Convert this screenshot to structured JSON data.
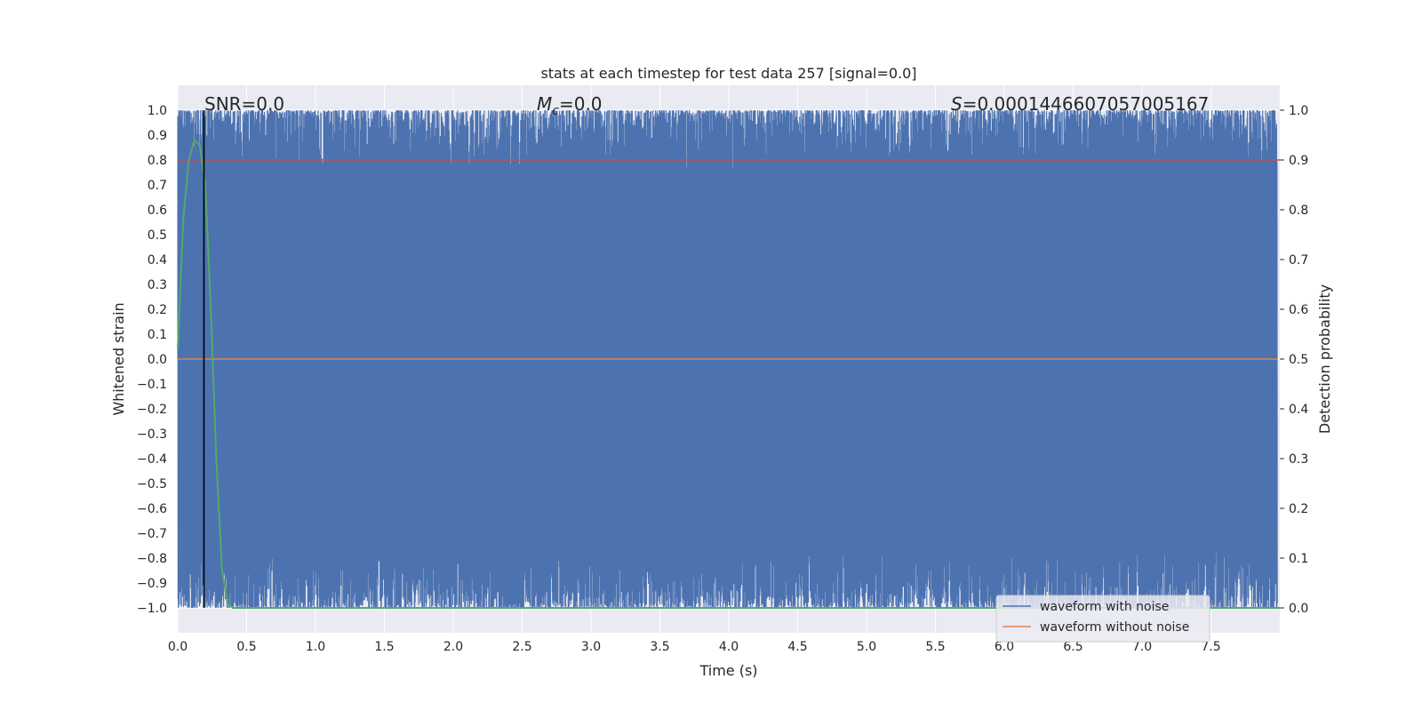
{
  "chart_data": {
    "type": "line",
    "title": "stats at each timestep for test data 257 [signal=0.0]",
    "xlabel": "Time (s)",
    "ylabel_left": "Whitened strain",
    "ylabel_right": "Detection probability",
    "xlim": [
      0.0,
      8.0
    ],
    "ylim_left": [
      -1.1,
      1.1
    ],
    "ylim_right": [
      -0.05,
      1.05
    ],
    "x_ticks": [
      "0.0",
      "0.5",
      "1.0",
      "1.5",
      "2.0",
      "2.5",
      "3.0",
      "3.5",
      "4.0",
      "4.5",
      "5.0",
      "5.5",
      "6.0",
      "6.5",
      "7.0",
      "7.5"
    ],
    "y_ticks_left": [
      "1.0",
      "0.9",
      "0.8",
      "0.7",
      "0.6",
      "0.5",
      "0.4",
      "0.3",
      "0.2",
      "0.1",
      "0.0",
      "−0.1",
      "−0.2",
      "−0.3",
      "−0.4",
      "−0.5",
      "−0.6",
      "−0.7",
      "−0.8",
      "−0.9",
      "−1.0"
    ],
    "y_ticks_right": [
      "1.0",
      "0.9",
      "0.8",
      "0.7",
      "0.6",
      "0.5",
      "0.4",
      "0.3",
      "0.2",
      "0.1",
      "0.0"
    ],
    "grid": true,
    "annotations": {
      "snr": "SNR=0.0",
      "mc_symbol": "M",
      "mc_sub": "c",
      "mc_value": "=0.0",
      "s_symbol": "S",
      "s_value": "=0.0001446607057005167"
    },
    "legend": {
      "placement": "lower-right",
      "entries": [
        "waveform with noise",
        "waveform without noise"
      ]
    },
    "series": [
      {
        "name": "waveform with noise",
        "axis": "left",
        "color": "#4c72b0",
        "style": "noise",
        "range": [
          -1.0,
          1.0
        ]
      },
      {
        "name": "waveform without noise",
        "axis": "left",
        "color": "#dd8452",
        "values": [
          0.0
        ]
      },
      {
        "axis": "right",
        "color": "#55a868",
        "x": [
          0.0,
          0.04,
          0.08,
          0.12,
          0.16,
          0.2,
          0.24,
          0.28,
          0.32,
          0.36,
          0.4,
          8.0
        ],
        "values": [
          0.52,
          0.78,
          0.9,
          0.94,
          0.93,
          0.85,
          0.6,
          0.3,
          0.08,
          0.01,
          0.0,
          0.0
        ]
      },
      {
        "axis": "right",
        "color": "#c44e52",
        "values": [
          0.9
        ]
      }
    ],
    "vline_x": 0.19
  },
  "colors": {
    "plot_bg": "#eaeaf2",
    "grid": "#ffffff",
    "noise": "#4c72b0",
    "clean": "#dd8452",
    "prob": "#55a868",
    "threshold": "#c44e52",
    "vline": "#000000"
  }
}
